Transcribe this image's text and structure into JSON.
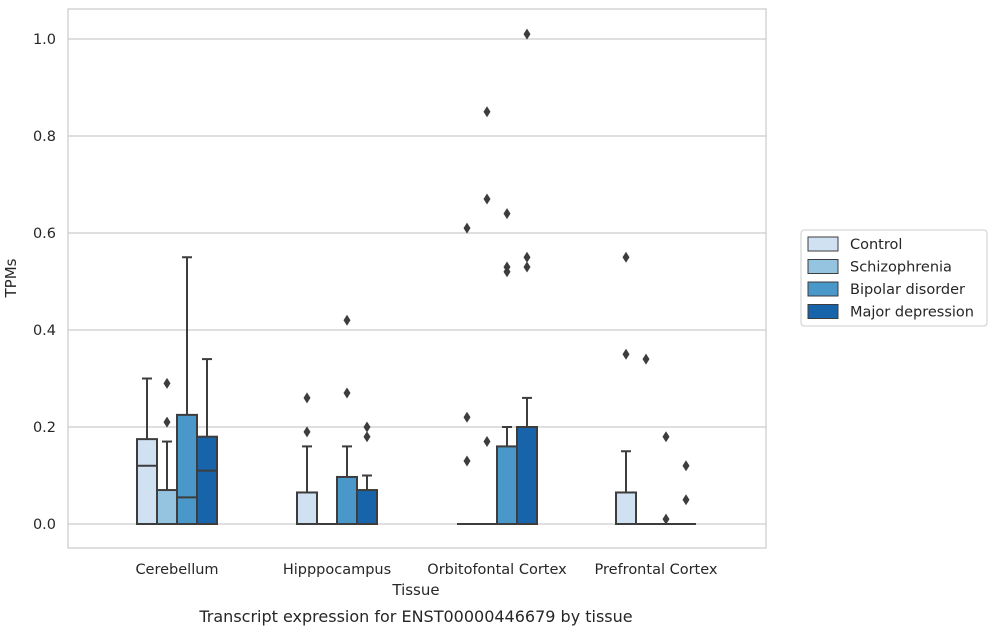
{
  "caption": "Transcript expression for ENST00000446679 by tissue",
  "chart_data": {
    "type": "box",
    "title": "",
    "xlabel": "Tissue",
    "ylabel": "TPMs",
    "ylim": [
      -0.05,
      1.06
    ],
    "yticks": [
      "0.0",
      "0.2",
      "0.4",
      "0.6",
      "0.8",
      "1.0"
    ],
    "grid": true,
    "legend_position": "right",
    "categories": [
      "Cerebellum",
      "Hipppocampus",
      "Orbitofontal Cortex",
      "Prefrontal Cortex"
    ],
    "series": [
      {
        "name": "Control",
        "color": "#d0e1f2",
        "boxes": [
          {
            "q1": 0,
            "median": 0.12,
            "q3": 0.175,
            "whislo": 0,
            "whishi": 0.3,
            "fliers": []
          },
          {
            "q1": 0,
            "median": 0,
            "q3": 0.065,
            "whislo": 0,
            "whishi": 0.16,
            "fliers": [
              0.19,
              0.26
            ]
          },
          {
            "q1": 0,
            "median": 0,
            "q3": 0,
            "whislo": 0,
            "whishi": 0,
            "fliers": [
              0.13,
              0.22,
              0.61
            ]
          },
          {
            "q1": 0,
            "median": 0,
            "q3": 0.065,
            "whislo": 0,
            "whishi": 0.15,
            "fliers": [
              0.35,
              0.55
            ]
          }
        ]
      },
      {
        "name": "Schizophrenia",
        "color": "#94c4df",
        "boxes": [
          {
            "q1": 0,
            "median": 0,
            "q3": 0.07,
            "whislo": 0,
            "whishi": 0.17,
            "fliers": [
              0.21,
              0.29
            ]
          },
          {
            "q1": 0,
            "median": 0,
            "q3": 0,
            "whislo": 0,
            "whishi": 0,
            "fliers": []
          },
          {
            "q1": 0,
            "median": 0,
            "q3": 0,
            "whislo": 0,
            "whishi": 0,
            "fliers": [
              0.17,
              0.67,
              0.85
            ]
          },
          {
            "q1": 0,
            "median": 0,
            "q3": 0,
            "whislo": 0,
            "whishi": 0,
            "fliers": [
              0.34
            ]
          }
        ]
      },
      {
        "name": "Bipolar disorder",
        "color": "#4a98c9",
        "boxes": [
          {
            "q1": 0,
            "median": 0.055,
            "q3": 0.225,
            "whislo": 0,
            "whishi": 0.55,
            "fliers": []
          },
          {
            "q1": 0,
            "median": 0,
            "q3": 0.097,
            "whislo": 0,
            "whishi": 0.16,
            "fliers": [
              0.27,
              0.42
            ]
          },
          {
            "q1": 0,
            "median": 0,
            "q3": 0.16,
            "whislo": 0,
            "whishi": 0.2,
            "fliers": [
              0.52,
              0.53,
              0.64
            ]
          },
          {
            "q1": 0,
            "median": 0,
            "q3": 0,
            "whislo": 0,
            "whishi": 0,
            "fliers": [
              0.01,
              0.18
            ]
          }
        ]
      },
      {
        "name": "Major depression",
        "color": "#1764ab",
        "boxes": [
          {
            "q1": 0,
            "median": 0.11,
            "q3": 0.18,
            "whislo": 0,
            "whishi": 0.34,
            "fliers": []
          },
          {
            "q1": 0,
            "median": 0,
            "q3": 0.07,
            "whislo": 0,
            "whishi": 0.1,
            "fliers": [
              0.18,
              0.2
            ]
          },
          {
            "q1": 0,
            "median": 0,
            "q3": 0.2,
            "whislo": 0,
            "whishi": 0.26,
            "fliers": [
              0.53,
              0.55,
              1.01
            ]
          },
          {
            "q1": 0,
            "median": 0,
            "q3": 0,
            "whislo": 0,
            "whishi": 0,
            "fliers": [
              0.05,
              0.12
            ]
          }
        ]
      }
    ]
  }
}
